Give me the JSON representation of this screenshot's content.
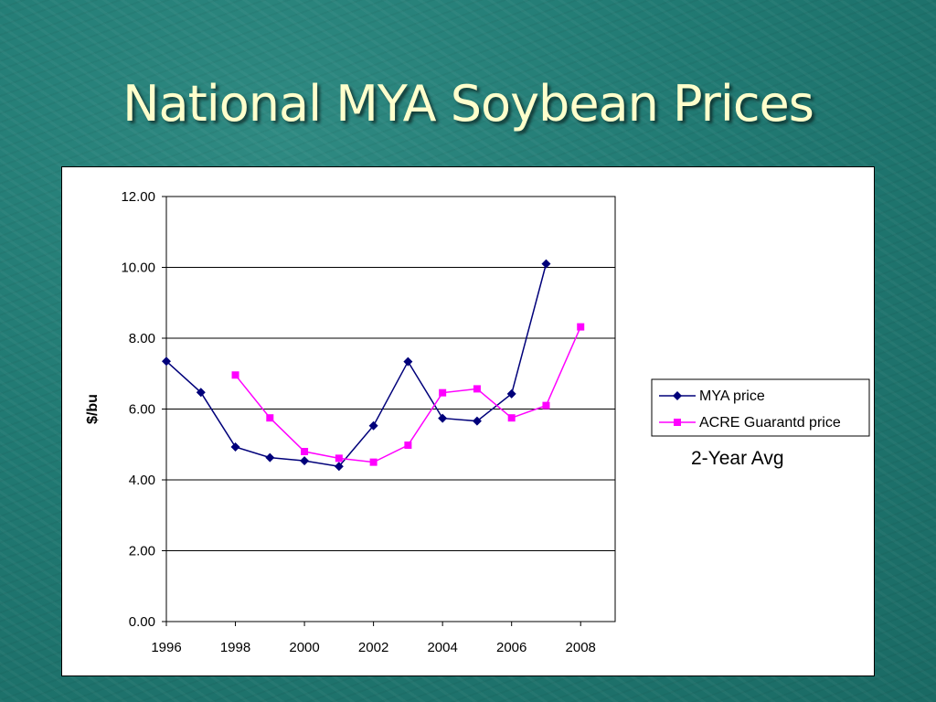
{
  "slide": {
    "title": "National MYA Soybean Prices"
  },
  "chart_data": {
    "type": "line",
    "title": "",
    "xlabel": "",
    "ylabel": "$/bu",
    "xlim": [
      1996,
      2009
    ],
    "ylim": [
      0,
      12
    ],
    "x_ticks": [
      1996,
      1998,
      2000,
      2002,
      2004,
      2006,
      2008
    ],
    "y_ticks": [
      "0.00",
      "2.00",
      "4.00",
      "6.00",
      "8.00",
      "10.00",
      "12.00"
    ],
    "grid": "horizontal",
    "legend_position": "right",
    "annotation": "2-Year Avg",
    "series": [
      {
        "name": "MYA price",
        "color": "#00007a",
        "marker": "diamond",
        "x": [
          1996,
          1997,
          1998,
          1999,
          2000,
          2001,
          2002,
          2003,
          2004,
          2005,
          2006,
          2007
        ],
        "values": [
          7.35,
          6.47,
          4.93,
          4.63,
          4.54,
          4.38,
          5.53,
          7.34,
          5.74,
          5.66,
          6.43,
          10.1
        ]
      },
      {
        "name": "ACRE Guarantd price",
        "color": "#ff00ff",
        "marker": "square",
        "x": [
          1998,
          1999,
          2000,
          2001,
          2002,
          2003,
          2004,
          2005,
          2006,
          2007,
          2008
        ],
        "values": [
          6.96,
          5.75,
          4.8,
          4.61,
          4.5,
          4.98,
          6.46,
          6.57,
          5.75,
          6.1,
          8.32
        ]
      }
    ]
  }
}
